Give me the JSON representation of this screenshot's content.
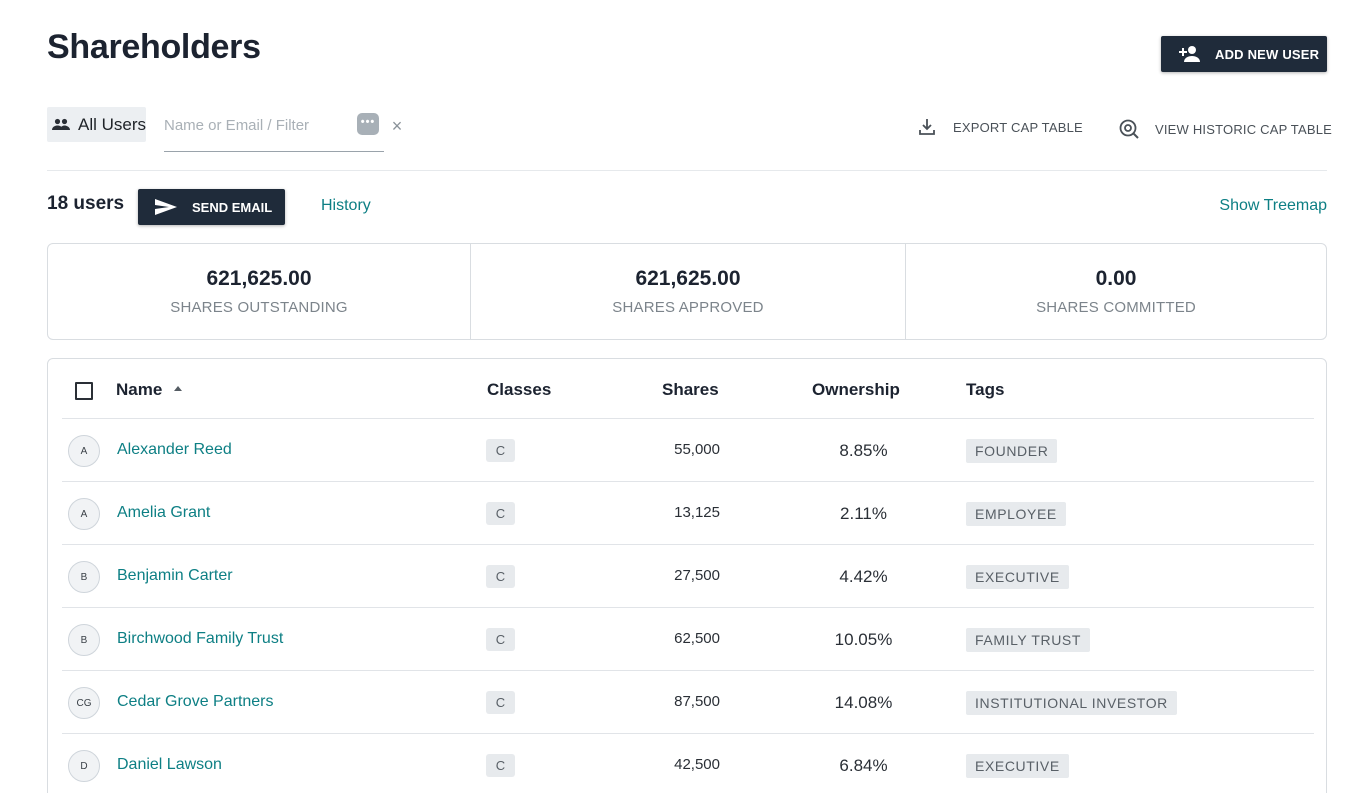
{
  "page": {
    "title": "Shareholders",
    "add_user_label": "ADD NEW USER",
    "filter_chip_label": "All Users",
    "search_placeholder": "Name or Email / Filter",
    "export_label": "EXPORT CAP TABLE",
    "historic_label": "VIEW HISTORIC CAP TABLE",
    "user_count": "18 users",
    "send_email_label": "SEND EMAIL",
    "history_link": "History",
    "treemap_link": "Show Treemap"
  },
  "stats": [
    {
      "value": "621,625.00",
      "label": "SHARES OUTSTANDING"
    },
    {
      "value": "621,625.00",
      "label": "SHARES APPROVED"
    },
    {
      "value": "0.00",
      "label": "SHARES COMMITTED"
    }
  ],
  "table": {
    "columns": {
      "name": "Name",
      "classes": "Classes",
      "shares": "Shares",
      "ownership": "Ownership",
      "tags": "Tags"
    },
    "rows": [
      {
        "initials": "A",
        "name": "Alexander Reed",
        "class": "C",
        "shares": "55,000",
        "ownership": "8.85%",
        "tag": "FOUNDER"
      },
      {
        "initials": "A",
        "name": "Amelia Grant",
        "class": "C",
        "shares": "13,125",
        "ownership": "2.11%",
        "tag": "EMPLOYEE"
      },
      {
        "initials": "B",
        "name": "Benjamin Carter",
        "class": "C",
        "shares": "27,500",
        "ownership": "4.42%",
        "tag": "EXECUTIVE"
      },
      {
        "initials": "B",
        "name": "Birchwood Family Trust",
        "class": "C",
        "shares": "62,500",
        "ownership": "10.05%",
        "tag": "FAMILY TRUST"
      },
      {
        "initials": "CG",
        "name": "Cedar Grove Partners",
        "class": "C",
        "shares": "87,500",
        "ownership": "14.08%",
        "tag": "INSTITUTIONAL INVESTOR"
      },
      {
        "initials": "D",
        "name": "Daniel Lawson",
        "class": "C",
        "shares": "42,500",
        "ownership": "6.84%",
        "tag": "EXECUTIVE"
      }
    ]
  }
}
